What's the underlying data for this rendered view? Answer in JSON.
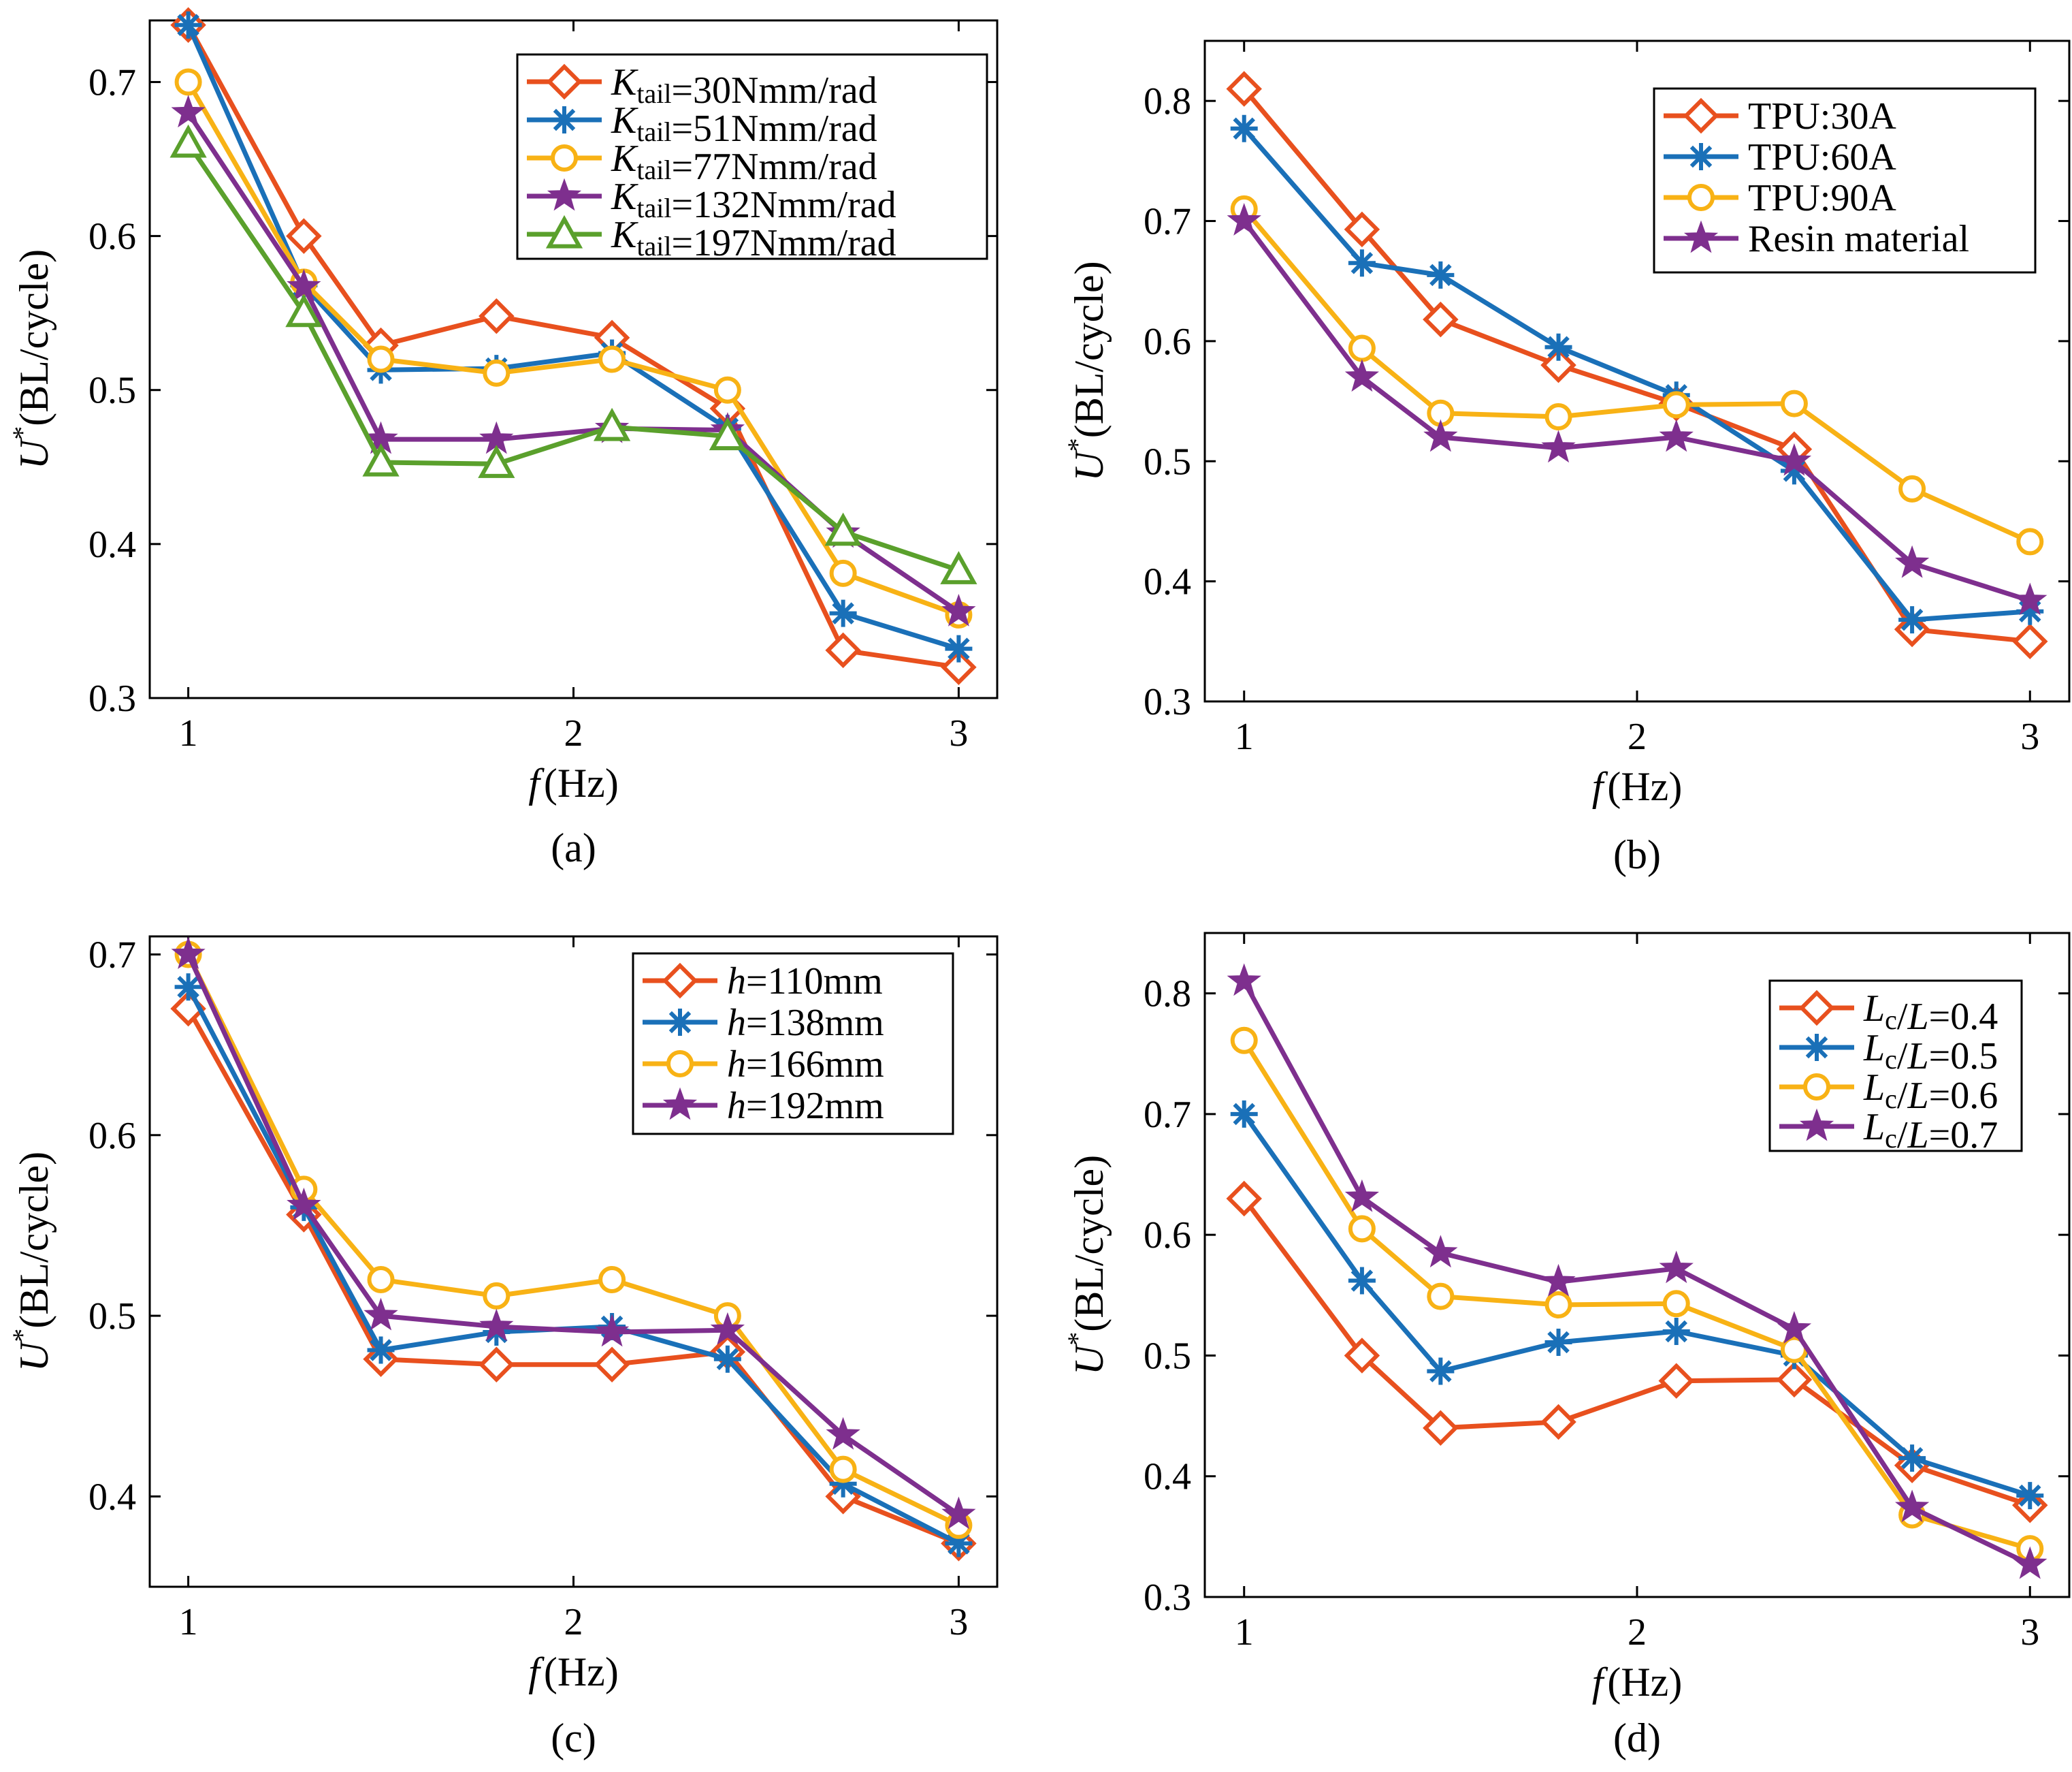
{
  "chart_data": [
    {
      "type": "line",
      "panel": "(a)",
      "xlabel_var": "f",
      "xlabel_unit": "(Hz)",
      "ylabel_var": "U",
      "ylabel_sup": "*",
      "ylabel_unit": "(BL/cycle)",
      "xlim": [
        0.9,
        3.1
      ],
      "ylim": [
        0.3,
        0.74
      ],
      "xticks": [
        1,
        2,
        3
      ],
      "yticks": [
        0.3,
        0.4,
        0.5,
        0.6,
        0.7
      ],
      "ytick_labels": [
        "0.3",
        "0.4",
        "0.5",
        "0.6",
        "0.7"
      ],
      "legend_position": "top-right",
      "x": [
        1.0,
        1.3,
        1.5,
        1.8,
        2.1,
        2.4,
        2.7,
        3.0
      ],
      "series": [
        {
          "var": "K",
          "sub": "tail",
          "rest": "=30Nmm/rad",
          "marker": "diamond",
          "color": "#e8501e",
          "values": [
            0.737,
            0.6,
            0.529,
            0.548,
            0.534,
            0.488,
            0.331,
            0.32
          ]
        },
        {
          "var": "K",
          "sub": "tail",
          "rest": "=51Nmm/rad",
          "marker": "asterisk",
          "color": "#1a70b8",
          "values": [
            0.737,
            0.568,
            0.513,
            0.514,
            0.524,
            0.475,
            0.355,
            0.332
          ]
        },
        {
          "var": "K",
          "sub": "tail",
          "rest": "=77Nmm/rad",
          "marker": "circle",
          "color": "#f8b215",
          "values": [
            0.7,
            0.57,
            0.52,
            0.511,
            0.52,
            0.5,
            0.381,
            0.354
          ]
        },
        {
          "var": "K",
          "sub": "tail",
          "rest": "=132Nmm/rad",
          "marker": "star",
          "color": "#7e2f8e",
          "values": [
            0.68,
            0.567,
            0.468,
            0.468,
            0.475,
            0.474,
            0.407,
            0.356
          ]
        },
        {
          "var": "K",
          "sub": "tail",
          "rest": "=197Nmm/rad",
          "marker": "triangle",
          "color": "#5aa02c",
          "values": [
            0.66,
            0.55,
            0.453,
            0.452,
            0.476,
            0.47,
            0.408,
            0.383
          ]
        }
      ]
    },
    {
      "type": "line",
      "panel": "(b)",
      "xlabel_var": "f",
      "xlabel_unit": "(Hz)",
      "ylabel_var": "U",
      "ylabel_sup": "*",
      "ylabel_unit": "(BL/cycle)",
      "xlim": [
        0.9,
        3.1
      ],
      "ylim": [
        0.3,
        0.85
      ],
      "xticks": [
        1,
        2,
        3
      ],
      "yticks": [
        0.3,
        0.4,
        0.5,
        0.6,
        0.7,
        0.8
      ],
      "ytick_labels": [
        "0.3",
        "0.4",
        "0.5",
        "0.6",
        "0.7",
        "0.8"
      ],
      "legend_position": "top-right",
      "x": [
        1.0,
        1.3,
        1.5,
        1.8,
        2.1,
        2.4,
        2.7,
        3.0
      ],
      "series": [
        {
          "label": "TPU:30A",
          "marker": "diamond",
          "color": "#e8501e",
          "values": [
            0.81,
            0.693,
            0.618,
            0.58,
            0.548,
            0.51,
            0.36,
            0.35
          ]
        },
        {
          "label": "TPU:60A",
          "marker": "asterisk",
          "color": "#1a70b8",
          "values": [
            0.777,
            0.665,
            0.655,
            0.595,
            0.555,
            0.492,
            0.368,
            0.375
          ]
        },
        {
          "label": "TPU:90A",
          "marker": "circle",
          "color": "#f8b215",
          "values": [
            0.71,
            0.594,
            0.54,
            0.537,
            0.547,
            0.548,
            0.477,
            0.433
          ]
        },
        {
          "label": "Resin material",
          "marker": "star",
          "color": "#7e2f8e",
          "values": [
            0.7,
            0.57,
            0.52,
            0.511,
            0.52,
            0.5,
            0.415,
            0.384
          ]
        }
      ]
    },
    {
      "type": "line",
      "panel": "(c)",
      "xlabel_var": "f",
      "xlabel_unit": "(Hz)",
      "ylabel_var": "U",
      "ylabel_sup": "*",
      "ylabel_unit": "(BL/cycle)",
      "xlim": [
        0.9,
        3.1
      ],
      "ylim": [
        0.35,
        0.71
      ],
      "xticks": [
        1,
        2,
        3
      ],
      "yticks": [
        0.4,
        0.5,
        0.6,
        0.7
      ],
      "ytick_labels": [
        "0.4",
        "0.5",
        "0.6",
        "0.7"
      ],
      "legend_position": "top-right",
      "x": [
        1.0,
        1.3,
        1.5,
        1.8,
        2.1,
        2.4,
        2.7,
        3.0
      ],
      "series": [
        {
          "var": "h",
          "rest": "=110mm",
          "marker": "diamond",
          "color": "#e8501e",
          "values": [
            0.67,
            0.556,
            0.476,
            0.473,
            0.473,
            0.48,
            0.4,
            0.374
          ]
        },
        {
          "var": "h",
          "rest": "=138mm",
          "marker": "asterisk",
          "color": "#1a70b8",
          "values": [
            0.682,
            0.56,
            0.481,
            0.491,
            0.494,
            0.476,
            0.407,
            0.374
          ]
        },
        {
          "var": "h",
          "rest": "=166mm",
          "marker": "circle",
          "color": "#f8b215",
          "values": [
            0.7,
            0.57,
            0.52,
            0.511,
            0.52,
            0.5,
            0.415,
            0.384
          ]
        },
        {
          "var": "h",
          "rest": "=192mm",
          "marker": "star",
          "color": "#7e2f8e",
          "values": [
            0.7,
            0.561,
            0.5,
            0.494,
            0.491,
            0.492,
            0.434,
            0.39
          ]
        }
      ]
    },
    {
      "type": "line",
      "panel": "(d)",
      "xlabel_var": "f",
      "xlabel_unit": "(Hz)",
      "ylabel_var": "U",
      "ylabel_sup": "*",
      "ylabel_unit": "(BL/cycle)",
      "xlim": [
        0.9,
        3.1
      ],
      "ylim": [
        0.3,
        0.85
      ],
      "xticks": [
        1,
        2,
        3
      ],
      "yticks": [
        0.3,
        0.4,
        0.5,
        0.6,
        0.7,
        0.8
      ],
      "ytick_labels": [
        "0.3",
        "0.4",
        "0.5",
        "0.6",
        "0.7",
        "0.8"
      ],
      "legend_position": "top-right",
      "x": [
        1.0,
        1.3,
        1.5,
        1.8,
        2.1,
        2.4,
        2.7,
        3.0
      ],
      "series": [
        {
          "var": "L",
          "sub": "c",
          "mid": "/",
          "var2": "L",
          "rest": "=0.4",
          "marker": "diamond",
          "color": "#e8501e",
          "values": [
            0.63,
            0.5,
            0.44,
            0.445,
            0.479,
            0.48,
            0.409,
            0.376
          ]
        },
        {
          "var": "L",
          "sub": "c",
          "mid": "/",
          "var2": "L",
          "rest": "=0.5",
          "marker": "asterisk",
          "color": "#1a70b8",
          "values": [
            0.7,
            0.562,
            0.487,
            0.511,
            0.52,
            0.5,
            0.415,
            0.384
          ]
        },
        {
          "var": "L",
          "sub": "c",
          "mid": "/",
          "var2": "L",
          "rest": "=0.6",
          "marker": "circle",
          "color": "#f8b215",
          "values": [
            0.761,
            0.605,
            0.549,
            0.542,
            0.543,
            0.505,
            0.368,
            0.34
          ]
        },
        {
          "var": "L",
          "sub": "c",
          "mid": "/",
          "var2": "L",
          "rest": "=0.7",
          "marker": "star",
          "color": "#7e2f8e",
          "values": [
            0.81,
            0.631,
            0.585,
            0.561,
            0.572,
            0.522,
            0.374,
            0.327
          ]
        }
      ]
    }
  ]
}
